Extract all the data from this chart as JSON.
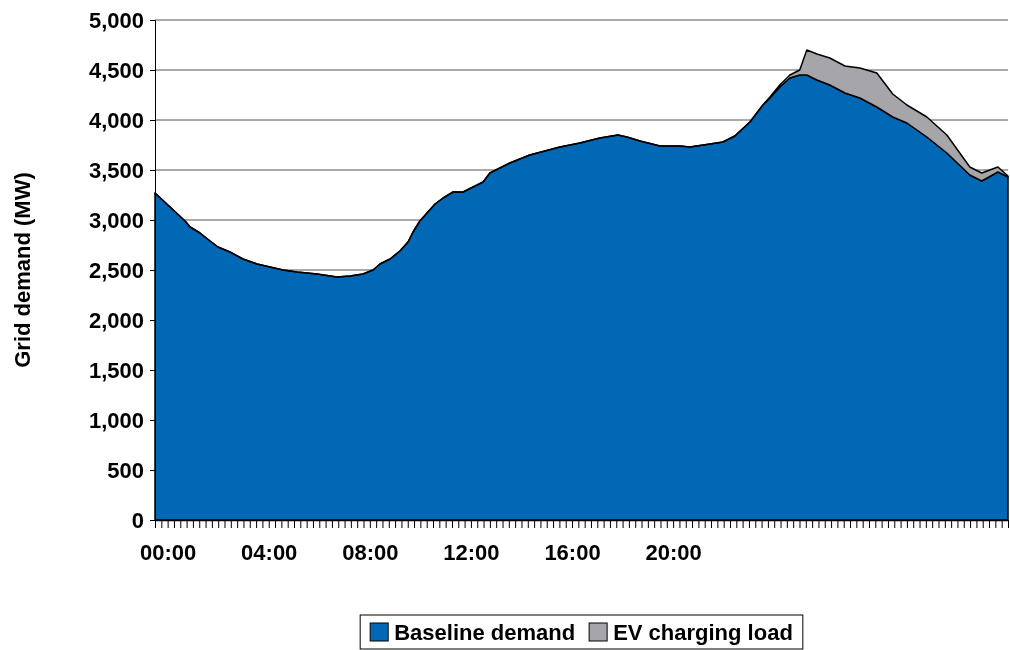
{
  "chart_data": {
    "type": "area",
    "stacked": true,
    "ylabel": "Grid demand (MW)",
    "x": [
      -0.5,
      0.69,
      0.89,
      1.28,
      1.68,
      1.99,
      2.47,
      2.98,
      3.54,
      4.05,
      4.57,
      5.12,
      5.91,
      6.7,
      7.22,
      7.73,
      8.13,
      8.4,
      8.8,
      9.19,
      9.51,
      9.71,
      9.98,
      10.58,
      10.9,
      11.29,
      11.69,
      12.48,
      12.75,
      13.54,
      14.33,
      15.52,
      15.92,
      16.31,
      17.1,
      17.82,
      18.17,
      18.69,
      19.48,
      20.27,
      20.66,
      21.46,
      21.97,
      22.44,
      23.04,
      23.55,
      23.83,
      24.22,
      24.62,
      25.01,
      25.29,
      25.69,
      26.2,
      26.8,
      27.39,
      28.06,
      28.69,
      29.25,
      30.04,
      30.83,
      31.74,
      32.21,
      32.85,
      33.25
    ],
    "series": [
      {
        "name": "Baseline demand",
        "color": "#0068b5",
        "values": [
          3270,
          2990,
          2930,
          2870,
          2790,
          2730,
          2680,
          2610,
          2560,
          2530,
          2500,
          2480,
          2460,
          2430,
          2440,
          2460,
          2500,
          2560,
          2610,
          2690,
          2780,
          2880,
          2990,
          3160,
          3220,
          3280,
          3280,
          3380,
          3470,
          3570,
          3650,
          3730,
          3750,
          3770,
          3820,
          3850,
          3830,
          3790,
          3740,
          3740,
          3730,
          3760,
          3780,
          3840,
          3980,
          4150,
          4220,
          4330,
          4420,
          4450,
          4450,
          4400,
          4350,
          4270,
          4220,
          4130,
          4030,
          3970,
          3830,
          3670,
          3450,
          3390,
          3480,
          3430
        ]
      },
      {
        "name": "EV charging load",
        "color": "#a6a6aa",
        "values": [
          0,
          0,
          0,
          0,
          0,
          0,
          0,
          0,
          0,
          0,
          0,
          0,
          0,
          0,
          0,
          0,
          0,
          0,
          0,
          0,
          0,
          0,
          0,
          0,
          0,
          0,
          0,
          0,
          0,
          0,
          0,
          0,
          0,
          0,
          0,
          0,
          0,
          0,
          0,
          0,
          0,
          0,
          0,
          0,
          0,
          0,
          10,
          20,
          30,
          50,
          250,
          260,
          270,
          270,
          300,
          340,
          230,
          180,
          200,
          180,
          80,
          80,
          50,
          10
        ]
      }
    ],
    "xlim": [
      -0.5,
      33.25
    ],
    "xticks": [
      {
        "value": -0.5,
        "label": null
      },
      {
        "value": -0.25,
        "label": null
      },
      {
        "value": 0,
        "label": "00:00"
      },
      {
        "value": 0.25,
        "label": null
      },
      {
        "value": 0.5,
        "label": null
      },
      {
        "value": 0.75,
        "label": null
      },
      {
        "value": 1,
        "label": null
      },
      {
        "value": 1.25,
        "label": null
      },
      {
        "value": 1.5,
        "label": null
      },
      {
        "value": 1.75,
        "label": null
      },
      {
        "value": 2,
        "label": null
      },
      {
        "value": 2.25,
        "label": null
      },
      {
        "value": 2.5,
        "label": null
      },
      {
        "value": 2.75,
        "label": null
      },
      {
        "value": 3,
        "label": null
      },
      {
        "value": 3.25,
        "label": null
      },
      {
        "value": 3.5,
        "label": null
      },
      {
        "value": 3.75,
        "label": null
      },
      {
        "value": 4,
        "label": "04:00"
      },
      {
        "value": 4.25,
        "label": null
      },
      {
        "value": 4.5,
        "label": null
      },
      {
        "value": 4.75,
        "label": null
      },
      {
        "value": 5,
        "label": null
      },
      {
        "value": 5.25,
        "label": null
      },
      {
        "value": 5.5,
        "label": null
      },
      {
        "value": 5.75,
        "label": null
      },
      {
        "value": 6,
        "label": null
      },
      {
        "value": 6.25,
        "label": null
      },
      {
        "value": 6.5,
        "label": null
      },
      {
        "value": 6.75,
        "label": null
      },
      {
        "value": 7,
        "label": null
      },
      {
        "value": 7.25,
        "label": null
      },
      {
        "value": 7.5,
        "label": null
      },
      {
        "value": 7.75,
        "label": null
      },
      {
        "value": 8,
        "label": "08:00"
      },
      {
        "value": 8.25,
        "label": null
      },
      {
        "value": 8.5,
        "label": null
      },
      {
        "value": 8.75,
        "label": null
      },
      {
        "value": 9,
        "label": null
      },
      {
        "value": 9.25,
        "label": null
      },
      {
        "value": 9.5,
        "label": null
      },
      {
        "value": 9.75,
        "label": null
      },
      {
        "value": 10,
        "label": null
      },
      {
        "value": 10.25,
        "label": null
      },
      {
        "value": 10.5,
        "label": null
      },
      {
        "value": 10.75,
        "label": null
      },
      {
        "value": 11,
        "label": null
      },
      {
        "value": 11.25,
        "label": null
      },
      {
        "value": 11.5,
        "label": null
      },
      {
        "value": 11.75,
        "label": null
      },
      {
        "value": 12,
        "label": "12:00"
      },
      {
        "value": 12.25,
        "label": null
      },
      {
        "value": 12.5,
        "label": null
      },
      {
        "value": 12.75,
        "label": null
      },
      {
        "value": 13,
        "label": null
      },
      {
        "value": 13.25,
        "label": null
      },
      {
        "value": 13.5,
        "label": null
      },
      {
        "value": 13.75,
        "label": null
      },
      {
        "value": 14,
        "label": null
      },
      {
        "value": 14.25,
        "label": null
      },
      {
        "value": 14.5,
        "label": null
      },
      {
        "value": 14.75,
        "label": null
      },
      {
        "value": 15,
        "label": null
      },
      {
        "value": 15.25,
        "label": null
      },
      {
        "value": 15.5,
        "label": null
      },
      {
        "value": 15.75,
        "label": null
      },
      {
        "value": 16,
        "label": "16:00"
      },
      {
        "value": 16.25,
        "label": null
      },
      {
        "value": 16.5,
        "label": null
      },
      {
        "value": 16.75,
        "label": null
      },
      {
        "value": 17,
        "label": null
      },
      {
        "value": 17.25,
        "label": null
      },
      {
        "value": 17.5,
        "label": null
      },
      {
        "value": 17.75,
        "label": null
      },
      {
        "value": 18,
        "label": null
      },
      {
        "value": 18.25,
        "label": null
      },
      {
        "value": 18.5,
        "label": null
      },
      {
        "value": 18.75,
        "label": null
      },
      {
        "value": 19,
        "label": null
      },
      {
        "value": 19.25,
        "label": null
      },
      {
        "value": 19.5,
        "label": null
      },
      {
        "value": 19.75,
        "label": null
      },
      {
        "value": 20,
        "label": "20:00"
      },
      {
        "value": 20.25,
        "label": null
      },
      {
        "value": 20.5,
        "label": null
      },
      {
        "value": 20.75,
        "label": null
      },
      {
        "value": 21,
        "label": null
      },
      {
        "value": 21.25,
        "label": null
      },
      {
        "value": 21.5,
        "label": null
      },
      {
        "value": 21.75,
        "label": null
      },
      {
        "value": 22,
        "label": null
      },
      {
        "value": 22.25,
        "label": null
      },
      {
        "value": 22.5,
        "label": null
      },
      {
        "value": 22.75,
        "label": null
      },
      {
        "value": 23,
        "label": null
      },
      {
        "value": 23.25,
        "label": null
      },
      {
        "value": 23.5,
        "label": null
      },
      {
        "value": 23.75,
        "label": null
      },
      {
        "value": 24,
        "label": null
      },
      {
        "value": 24.25,
        "label": null
      },
      {
        "value": 24.5,
        "label": null
      },
      {
        "value": 24.75,
        "label": null
      },
      {
        "value": 25,
        "label": null
      },
      {
        "value": 25.25,
        "label": null
      },
      {
        "value": 25.5,
        "label": null
      },
      {
        "value": 25.75,
        "label": null
      },
      {
        "value": 26,
        "label": null
      },
      {
        "value": 26.25,
        "label": null
      },
      {
        "value": 26.5,
        "label": null
      },
      {
        "value": 26.75,
        "label": null
      },
      {
        "value": 27,
        "label": null
      },
      {
        "value": 27.25,
        "label": null
      },
      {
        "value": 27.5,
        "label": null
      },
      {
        "value": 27.75,
        "label": null
      },
      {
        "value": 28,
        "label": null
      },
      {
        "value": 28.25,
        "label": null
      },
      {
        "value": 28.5,
        "label": null
      },
      {
        "value": 28.75,
        "label": null
      },
      {
        "value": 29,
        "label": null
      },
      {
        "value": 29.25,
        "label": null
      },
      {
        "value": 29.5,
        "label": null
      },
      {
        "value": 29.75,
        "label": null
      },
      {
        "value": 30,
        "label": null
      },
      {
        "value": 30.25,
        "label": null
      },
      {
        "value": 30.5,
        "label": null
      },
      {
        "value": 30.75,
        "label": null
      },
      {
        "value": 31,
        "label": null
      },
      {
        "value": 31.25,
        "label": null
      },
      {
        "value": 31.5,
        "label": null
      },
      {
        "value": 31.75,
        "label": null
      },
      {
        "value": 32,
        "label": null
      },
      {
        "value": 32.25,
        "label": null
      },
      {
        "value": 32.5,
        "label": null
      },
      {
        "value": 32.75,
        "label": null
      },
      {
        "value": 33,
        "label": null
      },
      {
        "value": 33.25,
        "label": null
      }
    ],
    "ylim": [
      0,
      5000
    ],
    "yticks": [
      0,
      500,
      {
        "value": 1000,
        "label": "1,000"
      },
      {
        "value": 1500,
        "label": "1,500"
      },
      {
        "value": 2000,
        "label": "2,000"
      },
      {
        "value": 2500,
        "label": "2,500"
      },
      {
        "value": 3000,
        "label": "3,000"
      },
      {
        "value": 3500,
        "label": "3,500"
      },
      {
        "value": 4000,
        "label": "4,000"
      },
      {
        "value": 4500,
        "label": "4,500"
      },
      {
        "value": 5000,
        "label": "5,000"
      }
    ],
    "grid": "y",
    "legend": "bottom"
  }
}
